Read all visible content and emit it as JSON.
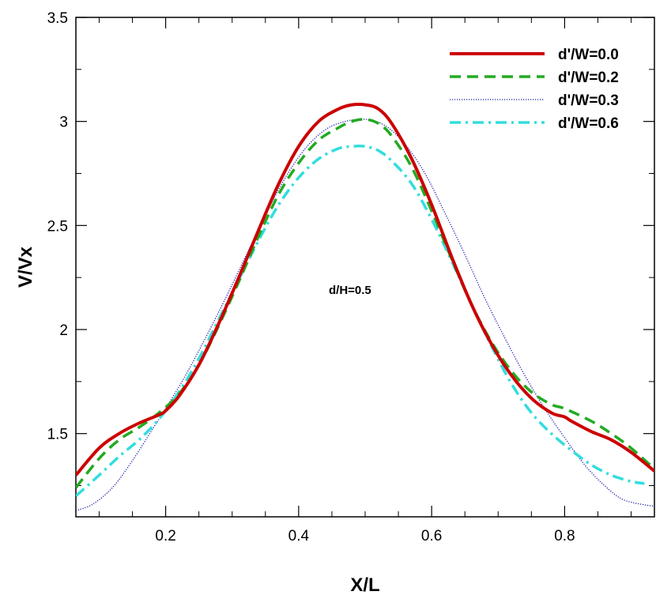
{
  "chart_data": {
    "type": "line",
    "title": "",
    "xlabel": "X/L",
    "ylabel": "V/Vx",
    "xlim": [
      0.065,
      0.935
    ],
    "ylim": [
      1.1,
      3.5
    ],
    "xticks": [
      0.2,
      0.4,
      0.6,
      0.8
    ],
    "yticks": [
      1.5,
      2,
      2.5,
      3,
      3.5
    ],
    "xtick_labels": [
      "0.2",
      "0.4",
      "0.6",
      "0.8"
    ],
    "ytick_labels": [
      "1.5",
      "2",
      "2.5",
      "3",
      "3.5"
    ],
    "grid": false,
    "legend_position": "top-right",
    "annotation": "d/H=0.5",
    "series": [
      {
        "name": "d'/W=0.0",
        "color": "#cc0000",
        "style": "solid",
        "x": [
          0.065,
          0.1,
          0.13,
          0.16,
          0.19,
          0.2,
          0.22,
          0.25,
          0.28,
          0.31,
          0.34,
          0.37,
          0.4,
          0.43,
          0.46,
          0.48,
          0.5,
          0.52,
          0.54,
          0.57,
          0.6,
          0.63,
          0.66,
          0.69,
          0.72,
          0.75,
          0.78,
          0.8,
          0.81,
          0.84,
          0.87,
          0.9,
          0.935
        ],
        "y": [
          1.3,
          1.43,
          1.5,
          1.55,
          1.59,
          1.61,
          1.68,
          1.83,
          2.03,
          2.25,
          2.48,
          2.7,
          2.88,
          3.0,
          3.06,
          3.08,
          3.08,
          3.06,
          2.99,
          2.82,
          2.6,
          2.35,
          2.12,
          1.93,
          1.78,
          1.67,
          1.6,
          1.58,
          1.56,
          1.51,
          1.47,
          1.41,
          1.32
        ]
      },
      {
        "name": "d'/W=0.2",
        "color": "#22aa22",
        "style": "dashed",
        "x": [
          0.065,
          0.1,
          0.13,
          0.16,
          0.19,
          0.22,
          0.25,
          0.28,
          0.31,
          0.34,
          0.37,
          0.4,
          0.43,
          0.46,
          0.48,
          0.5,
          0.52,
          0.54,
          0.57,
          0.6,
          0.63,
          0.66,
          0.69,
          0.72,
          0.75,
          0.78,
          0.8,
          0.84,
          0.87,
          0.9,
          0.935
        ],
        "y": [
          1.24,
          1.38,
          1.47,
          1.53,
          1.6,
          1.69,
          1.83,
          2.02,
          2.23,
          2.45,
          2.65,
          2.8,
          2.91,
          2.97,
          3.0,
          3.01,
          2.99,
          2.93,
          2.78,
          2.57,
          2.34,
          2.12,
          1.94,
          1.8,
          1.7,
          1.64,
          1.62,
          1.56,
          1.5,
          1.43,
          1.33
        ]
      },
      {
        "name": "d'/W=0.3",
        "color": "#1a1aaa",
        "style": "dotted",
        "x": [
          0.065,
          0.09,
          0.12,
          0.15,
          0.18,
          0.2,
          0.23,
          0.26,
          0.29,
          0.32,
          0.35,
          0.38,
          0.41,
          0.44,
          0.47,
          0.5,
          0.53,
          0.56,
          0.59,
          0.62,
          0.65,
          0.68,
          0.71,
          0.74,
          0.77,
          0.8,
          0.83,
          0.86,
          0.89,
          0.935
        ],
        "y": [
          1.13,
          1.16,
          1.24,
          1.37,
          1.52,
          1.62,
          1.78,
          1.96,
          2.15,
          2.35,
          2.55,
          2.73,
          2.87,
          2.96,
          3.0,
          3.01,
          2.98,
          2.89,
          2.75,
          2.56,
          2.36,
          2.15,
          1.96,
          1.78,
          1.62,
          1.48,
          1.35,
          1.25,
          1.18,
          1.15
        ]
      },
      {
        "name": "d'/W=0.6",
        "color": "#33dddd",
        "style": "dashdot",
        "x": [
          0.065,
          0.1,
          0.13,
          0.16,
          0.19,
          0.22,
          0.25,
          0.28,
          0.31,
          0.34,
          0.37,
          0.4,
          0.43,
          0.46,
          0.48,
          0.5,
          0.52,
          0.54,
          0.57,
          0.6,
          0.63,
          0.66,
          0.69,
          0.72,
          0.75,
          0.78,
          0.81,
          0.84,
          0.87,
          0.9,
          0.92
        ],
        "y": [
          1.2,
          1.3,
          1.39,
          1.47,
          1.57,
          1.7,
          1.86,
          2.05,
          2.24,
          2.43,
          2.6,
          2.73,
          2.82,
          2.87,
          2.88,
          2.88,
          2.86,
          2.81,
          2.7,
          2.53,
          2.33,
          2.12,
          1.92,
          1.74,
          1.6,
          1.5,
          1.42,
          1.35,
          1.3,
          1.27,
          1.26
        ]
      }
    ]
  }
}
